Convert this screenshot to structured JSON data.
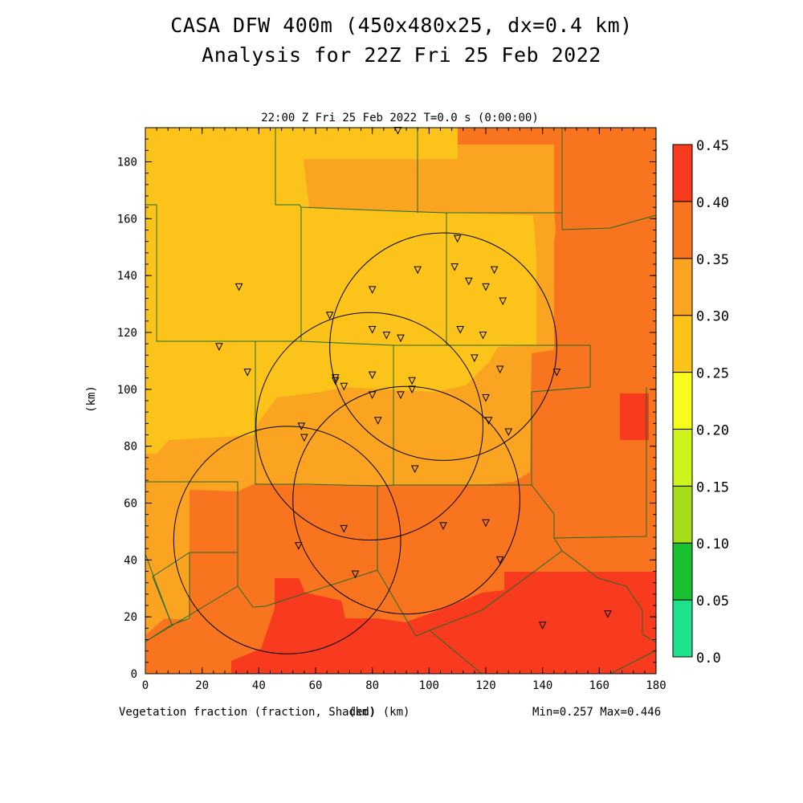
{
  "header": {
    "title_line1": "CASA DFW 400m (450x480x25, dx=0.4 km)",
    "title_line2": "Analysis for 22Z Fri 25 Feb 2022",
    "plot_time": "22:00 Z Fri 25 Feb 2022   T=0.0 s (0:00:00)"
  },
  "footer": {
    "variable_label": "Vegetation fraction (fraction, Shaded)  (km)",
    "min_max": "Min=0.257 Max=0.446"
  },
  "colors": {
    "c1": "#fcc41a",
    "c2": "#fba422",
    "c3": "#f9741e",
    "c4": "#f83a1e",
    "boundary": "#1f6b2a",
    "background": "#ffffff"
  },
  "chart_data": {
    "type": "heatmap",
    "title": "",
    "xlabel": "(km)",
    "ylabel": "(km)",
    "xlim": [
      0,
      180
    ],
    "ylim": [
      0,
      192
    ],
    "x_ticks": [
      0,
      20,
      40,
      60,
      80,
      100,
      120,
      140,
      160,
      180
    ],
    "y_ticks": [
      0,
      20,
      40,
      60,
      80,
      100,
      120,
      140,
      160,
      180
    ],
    "colorbar": {
      "levels": [
        0.0,
        0.05,
        0.1,
        0.15,
        0.2,
        0.25,
        0.3,
        0.35,
        0.4,
        0.45
      ],
      "tick_labels": [
        "0.0",
        "0.05",
        "0.10",
        "0.15",
        "0.20",
        "0.25",
        "0.30",
        "0.35",
        "0.40",
        "0.45"
      ],
      "colors": [
        "#1ee38c",
        "#19c030",
        "#a5dd1a",
        "#cdf51c",
        "#f6fd1c",
        "#fcc41a",
        "#fba422",
        "#f9741e",
        "#f83a1e"
      ]
    },
    "range_rings": [
      {
        "center": [
          79,
          87
        ],
        "radius_km": 40
      },
      {
        "center": [
          105,
          115
        ],
        "radius_km": 40
      },
      {
        "center": [
          92,
          61
        ],
        "radius_km": 40
      },
      {
        "center": [
          50,
          47
        ],
        "radius_km": 40
      }
    ],
    "stations": [
      [
        89,
        191
      ],
      [
        110,
        153
      ],
      [
        96,
        142
      ],
      [
        109,
        143
      ],
      [
        123,
        142
      ],
      [
        114,
        138
      ],
      [
        80,
        135
      ],
      [
        120,
        136
      ],
      [
        126,
        131
      ],
      [
        33,
        136
      ],
      [
        65,
        126
      ],
      [
        80,
        121
      ],
      [
        85,
        119
      ],
      [
        90,
        118
      ],
      [
        111,
        121
      ],
      [
        119,
        119
      ],
      [
        26,
        115
      ],
      [
        116,
        111
      ],
      [
        36,
        106
      ],
      [
        67,
        104
      ],
      [
        80,
        105
      ],
      [
        125,
        107
      ],
      [
        145,
        106
      ],
      [
        67,
        103
      ],
      [
        70,
        101
      ],
      [
        94,
        103
      ],
      [
        94,
        100
      ],
      [
        80,
        98
      ],
      [
        90,
        98
      ],
      [
        120,
        97
      ],
      [
        55,
        87
      ],
      [
        82,
        89
      ],
      [
        121,
        89
      ],
      [
        128,
        85
      ],
      [
        56,
        83
      ],
      [
        95,
        72
      ],
      [
        70,
        51
      ],
      [
        105,
        52
      ],
      [
        120,
        53
      ],
      [
        54,
        45
      ],
      [
        125,
        40
      ],
      [
        74,
        35
      ],
      [
        140,
        17
      ],
      [
        163,
        21
      ]
    ]
  }
}
